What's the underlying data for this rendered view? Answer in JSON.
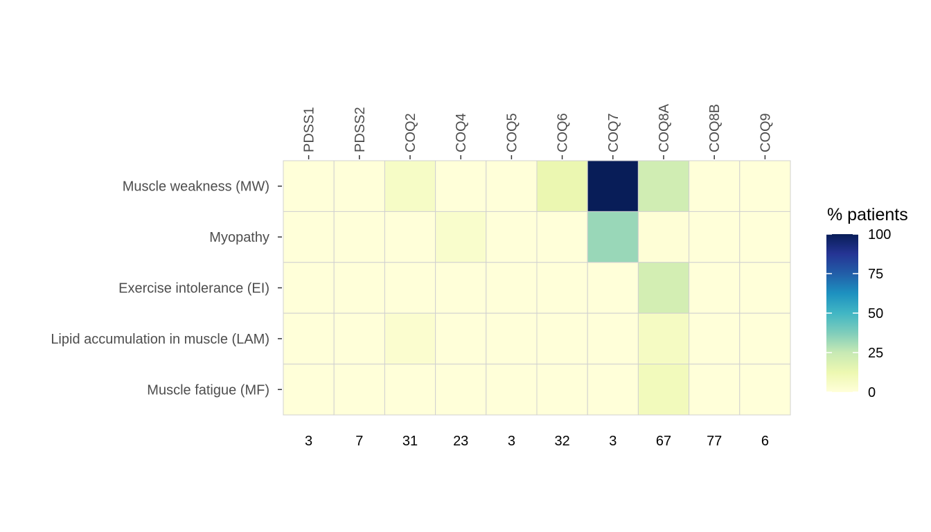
{
  "chart_data": {
    "type": "heatmap",
    "columns": [
      "PDSS1",
      "PDSS2",
      "COQ2",
      "COQ4",
      "COQ5",
      "COQ6",
      "COQ7",
      "COQ8A",
      "COQ8B",
      "COQ9"
    ],
    "rows": [
      "Muscle weakness (MW)",
      "Myopathy",
      "Exercise intolerance (EI)",
      "Lipid accumulation in muscle (LAM)",
      "Muscle fatigue (MF)"
    ],
    "values": [
      [
        0,
        0,
        6,
        0,
        0,
        13,
        100,
        22,
        0,
        0
      ],
      [
        0,
        0,
        0,
        4,
        0,
        0,
        33,
        1,
        0,
        0
      ],
      [
        0,
        0,
        0,
        0,
        0,
        0,
        0,
        21,
        0,
        0
      ],
      [
        0,
        0,
        3,
        0,
        0,
        0,
        0,
        7,
        0,
        0
      ],
      [
        0,
        0,
        0,
        0,
        0,
        0,
        0,
        9,
        0,
        0
      ]
    ],
    "patient_counts": [
      "3",
      "7",
      "31",
      "23",
      "3",
      "32",
      "3",
      "67",
      "77",
      "6"
    ],
    "legend": {
      "title": "% patients",
      "ticks": [
        "0",
        "25",
        "50",
        "75",
        "100"
      ],
      "range": [
        0,
        100
      ],
      "colors": [
        "#ffffd9",
        "#edf8b1",
        "#c7e9b4",
        "#7fcdbb",
        "#41b6c4",
        "#1d91c0",
        "#225ea8",
        "#253494",
        "#081d58"
      ],
      "placement": "right"
    },
    "grid_color": "#d0d0d0",
    "x_axis_position": "top"
  }
}
